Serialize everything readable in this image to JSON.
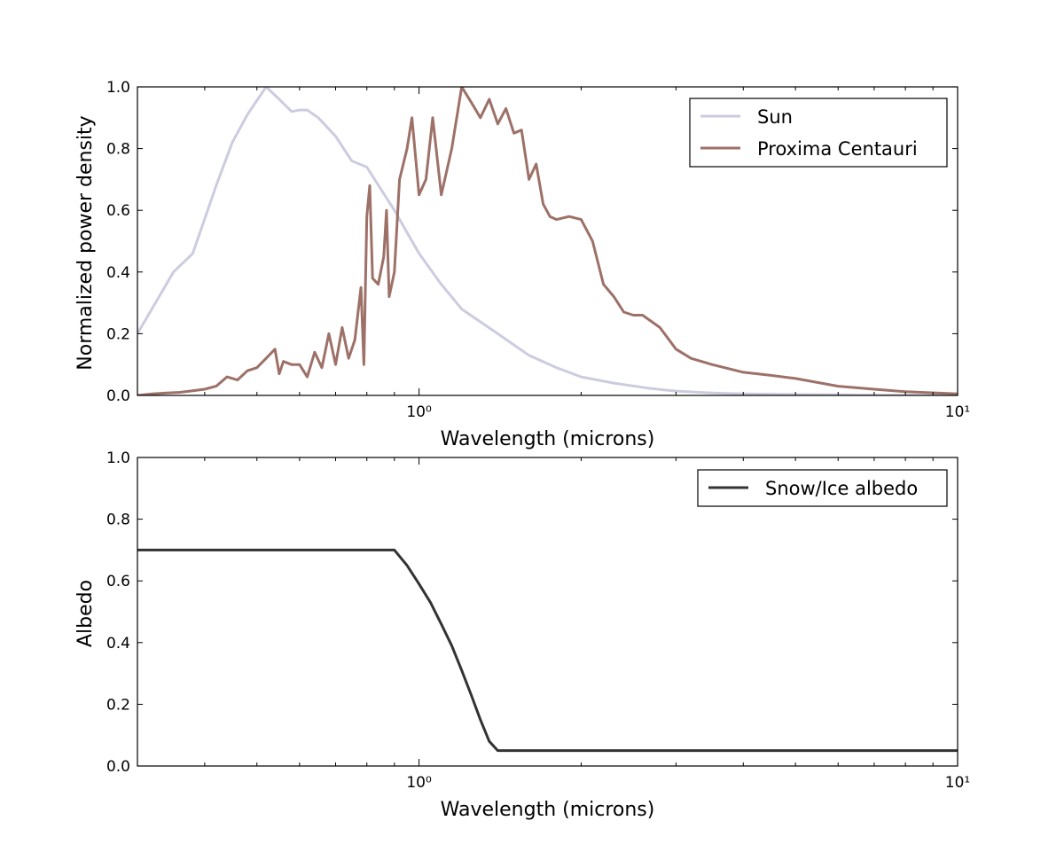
{
  "chart_data": [
    {
      "type": "line",
      "title": "",
      "xlabel": "Wavelength (microns)",
      "ylabel": "Normalized power density",
      "xscale": "log",
      "xlim": [
        0.3,
        10
      ],
      "ylim": [
        0.0,
        1.0
      ],
      "xticks": [
        {
          "value": 1,
          "label": "10⁰"
        },
        {
          "value": 10,
          "label": "10¹"
        }
      ],
      "yticks": [
        "0.0",
        "0.2",
        "0.4",
        "0.6",
        "0.8",
        "1.0"
      ],
      "grid": false,
      "legend": {
        "position": "top-right",
        "entries": [
          "Sun",
          "Proxima Centauri"
        ]
      },
      "series": [
        {
          "name": "Sun",
          "color": "#cccce0",
          "x": [
            0.3,
            0.35,
            0.38,
            0.42,
            0.45,
            0.48,
            0.52,
            0.55,
            0.58,
            0.6,
            0.62,
            0.65,
            0.7,
            0.75,
            0.8,
            0.9,
            1.0,
            1.1,
            1.2,
            1.4,
            1.6,
            1.8,
            2.0,
            2.3,
            2.7,
            3.0,
            3.5,
            4.0,
            5.0,
            6.0,
            7.0,
            8.0,
            10.0
          ],
          "y": [
            0.2,
            0.4,
            0.46,
            0.68,
            0.82,
            0.91,
            1.0,
            0.96,
            0.92,
            0.925,
            0.925,
            0.9,
            0.84,
            0.76,
            0.74,
            0.6,
            0.46,
            0.36,
            0.28,
            0.2,
            0.13,
            0.09,
            0.06,
            0.04,
            0.022,
            0.014,
            0.008,
            0.005,
            0.003,
            0.002,
            0.001,
            0.0006,
            0.0003
          ]
        },
        {
          "name": "Proxima Centauri",
          "color": "#9d7168",
          "x": [
            0.3,
            0.32,
            0.34,
            0.36,
            0.38,
            0.4,
            0.42,
            0.44,
            0.46,
            0.48,
            0.5,
            0.52,
            0.54,
            0.55,
            0.56,
            0.58,
            0.6,
            0.62,
            0.64,
            0.66,
            0.68,
            0.7,
            0.72,
            0.74,
            0.76,
            0.78,
            0.79,
            0.8,
            0.81,
            0.82,
            0.84,
            0.86,
            0.87,
            0.88,
            0.9,
            0.92,
            0.95,
            0.97,
            1.0,
            1.03,
            1.06,
            1.1,
            1.15,
            1.2,
            1.25,
            1.3,
            1.35,
            1.4,
            1.45,
            1.5,
            1.55,
            1.6,
            1.65,
            1.7,
            1.75,
            1.8,
            1.9,
            2.0,
            2.1,
            2.2,
            2.3,
            2.4,
            2.5,
            2.6,
            2.8,
            3.0,
            3.2,
            3.5,
            4.0,
            4.5,
            5.0,
            6.0,
            7.0,
            8.0,
            10.0
          ],
          "y": [
            0.0,
            0.005,
            0.008,
            0.01,
            0.015,
            0.02,
            0.03,
            0.06,
            0.05,
            0.08,
            0.09,
            0.12,
            0.15,
            0.07,
            0.11,
            0.1,
            0.1,
            0.06,
            0.14,
            0.09,
            0.2,
            0.1,
            0.22,
            0.12,
            0.18,
            0.35,
            0.1,
            0.58,
            0.68,
            0.38,
            0.36,
            0.45,
            0.6,
            0.32,
            0.4,
            0.7,
            0.8,
            0.9,
            0.65,
            0.7,
            0.9,
            0.65,
            0.8,
            1.0,
            0.95,
            0.9,
            0.96,
            0.88,
            0.93,
            0.85,
            0.86,
            0.7,
            0.75,
            0.62,
            0.58,
            0.57,
            0.58,
            0.57,
            0.5,
            0.36,
            0.32,
            0.27,
            0.26,
            0.26,
            0.22,
            0.15,
            0.12,
            0.1,
            0.075,
            0.065,
            0.055,
            0.03,
            0.02,
            0.012,
            0.005
          ]
        }
      ]
    },
    {
      "type": "line",
      "title": "",
      "xlabel": "Wavelength (microns)",
      "ylabel": "Albedo",
      "xscale": "log",
      "xlim": [
        0.3,
        10
      ],
      "ylim": [
        0.0,
        1.0
      ],
      "xticks": [
        {
          "value": 1,
          "label": "10⁰"
        },
        {
          "value": 10,
          "label": "10¹"
        }
      ],
      "yticks": [
        "0.0",
        "0.2",
        "0.4",
        "0.6",
        "0.8",
        "1.0"
      ],
      "grid": false,
      "legend": {
        "position": "top-right",
        "entries": [
          "Snow/Ice albedo"
        ]
      },
      "series": [
        {
          "name": "Snow/Ice albedo",
          "color": "#333333",
          "x": [
            0.3,
            0.9,
            0.95,
            1.0,
            1.05,
            1.1,
            1.15,
            1.2,
            1.25,
            1.3,
            1.35,
            1.4,
            10.0
          ],
          "y": [
            0.7,
            0.7,
            0.65,
            0.59,
            0.53,
            0.46,
            0.39,
            0.31,
            0.23,
            0.15,
            0.08,
            0.05,
            0.05
          ]
        }
      ]
    }
  ]
}
